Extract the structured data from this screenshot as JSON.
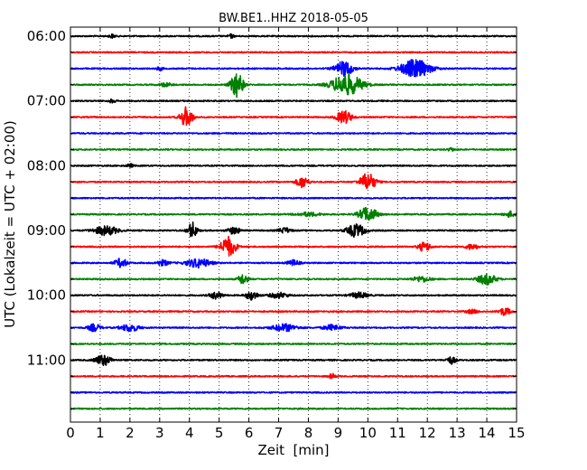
{
  "chart_data": {
    "type": "line",
    "title": "BW.BE1..HHZ 2018-05-05",
    "xlabel": "Zeit  [min]",
    "ylabel": "UTC (Lokalzeit = UTC + 02:00)",
    "xlim": [
      0,
      15
    ],
    "x_ticks": [
      "0",
      "1",
      "2",
      "3",
      "4",
      "5",
      "6",
      "7",
      "8",
      "9",
      "10",
      "11",
      "12",
      "13",
      "14",
      "15"
    ],
    "y_tick_labels": [
      "06:00",
      "07:00",
      "08:00",
      "09:00",
      "10:00",
      "11:00"
    ],
    "grid": "vertical dotted at each minute",
    "color_cycle": [
      "#000000",
      "#ff0000",
      "#0000ff",
      "#008000"
    ],
    "traces": [
      {
        "time": "06:00",
        "color": "#000000",
        "events": [
          {
            "t": 1.4,
            "a": 2,
            "w": 0.1
          },
          {
            "t": 5.4,
            "a": 2,
            "w": 0.1
          }
        ]
      },
      {
        "time": "06:15",
        "color": "#ff0000",
        "events": []
      },
      {
        "time": "06:30",
        "color": "#0000ff",
        "events": [
          {
            "t": 9.2,
            "a": 8,
            "w": 0.3
          },
          {
            "t": 11.6,
            "a": 10,
            "w": 0.5
          },
          {
            "t": 3.0,
            "a": 2,
            "w": 0.1
          }
        ]
      },
      {
        "time": "06:45",
        "color": "#008000",
        "events": [
          {
            "t": 5.6,
            "a": 14,
            "w": 0.2
          },
          {
            "t": 9.3,
            "a": 12,
            "w": 0.5
          },
          {
            "t": 3.2,
            "a": 2,
            "w": 0.2
          }
        ]
      },
      {
        "time": "07:00",
        "color": "#000000",
        "events": [
          {
            "t": 1.4,
            "a": 2,
            "w": 0.1
          }
        ]
      },
      {
        "time": "07:15",
        "color": "#ff0000",
        "events": [
          {
            "t": 3.9,
            "a": 11,
            "w": 0.2
          },
          {
            "t": 9.2,
            "a": 7,
            "w": 0.25
          }
        ]
      },
      {
        "time": "07:30",
        "color": "#0000ff",
        "events": []
      },
      {
        "time": "07:45",
        "color": "#008000",
        "events": [
          {
            "t": 12.8,
            "a": 2,
            "w": 0.1
          }
        ]
      },
      {
        "time": "08:00",
        "color": "#000000",
        "events": [
          {
            "t": 2.0,
            "a": 2,
            "w": 0.1
          }
        ]
      },
      {
        "time": "08:15",
        "color": "#ff0000",
        "events": [
          {
            "t": 7.8,
            "a": 6,
            "w": 0.2
          },
          {
            "t": 10.0,
            "a": 10,
            "w": 0.25
          }
        ]
      },
      {
        "time": "08:30",
        "color": "#0000ff",
        "events": []
      },
      {
        "time": "08:45",
        "color": "#008000",
        "events": [
          {
            "t": 10.0,
            "a": 8,
            "w": 0.3
          },
          {
            "t": 8.0,
            "a": 2,
            "w": 0.4
          },
          {
            "t": 14.8,
            "a": 3,
            "w": 0.2
          }
        ]
      },
      {
        "time": "09:00",
        "color": "#000000",
        "events": [
          {
            "t": 1.2,
            "a": 5,
            "w": 0.4
          },
          {
            "t": 4.1,
            "a": 9,
            "w": 0.15
          },
          {
            "t": 5.5,
            "a": 4,
            "w": 0.2
          },
          {
            "t": 9.6,
            "a": 7,
            "w": 0.3
          },
          {
            "t": 7.2,
            "a": 3,
            "w": 0.2
          }
        ]
      },
      {
        "time": "09:15",
        "color": "#ff0000",
        "events": [
          {
            "t": 5.3,
            "a": 11,
            "w": 0.25
          },
          {
            "t": 11.9,
            "a": 5,
            "w": 0.2
          },
          {
            "t": 13.5,
            "a": 3,
            "w": 0.2
          }
        ]
      },
      {
        "time": "09:30",
        "color": "#0000ff",
        "events": [
          {
            "t": 1.7,
            "a": 5,
            "w": 0.2
          },
          {
            "t": 4.3,
            "a": 5,
            "w": 0.4
          },
          {
            "t": 7.5,
            "a": 3,
            "w": 0.2
          },
          {
            "t": 3.1,
            "a": 3,
            "w": 0.2
          }
        ]
      },
      {
        "time": "09:45",
        "color": "#008000",
        "events": [
          {
            "t": 5.8,
            "a": 6,
            "w": 0.15
          },
          {
            "t": 14.0,
            "a": 6,
            "w": 0.3
          },
          {
            "t": 11.8,
            "a": 3,
            "w": 0.3
          }
        ]
      },
      {
        "time": "10:00",
        "color": "#000000",
        "events": [
          {
            "t": 4.9,
            "a": 4,
            "w": 0.2
          },
          {
            "t": 6.1,
            "a": 5,
            "w": 0.2
          },
          {
            "t": 7.0,
            "a": 3,
            "w": 0.3
          },
          {
            "t": 9.7,
            "a": 3,
            "w": 0.3
          }
        ]
      },
      {
        "time": "10:15",
        "color": "#ff0000",
        "events": [
          {
            "t": 14.6,
            "a": 4,
            "w": 0.2
          },
          {
            "t": 13.5,
            "a": 2,
            "w": 0.2
          }
        ]
      },
      {
        "time": "10:30",
        "color": "#0000ff",
        "events": [
          {
            "t": 0.8,
            "a": 4,
            "w": 0.2
          },
          {
            "t": 2.0,
            "a": 4,
            "w": 0.3
          },
          {
            "t": 7.2,
            "a": 4,
            "w": 0.4
          },
          {
            "t": 8.8,
            "a": 3,
            "w": 0.3
          }
        ]
      },
      {
        "time": "10:45",
        "color": "#008000",
        "events": []
      },
      {
        "time": "11:00",
        "color": "#000000",
        "events": [
          {
            "t": 1.1,
            "a": 6,
            "w": 0.25
          },
          {
            "t": 12.8,
            "a": 4,
            "w": 0.15
          }
        ]
      },
      {
        "time": "11:15",
        "color": "#ff0000",
        "events": [
          {
            "t": 8.8,
            "a": 3,
            "w": 0.1
          }
        ]
      },
      {
        "time": "11:30",
        "color": "#0000ff",
        "events": []
      },
      {
        "time": "11:45",
        "color": "#008000",
        "events": []
      }
    ]
  }
}
